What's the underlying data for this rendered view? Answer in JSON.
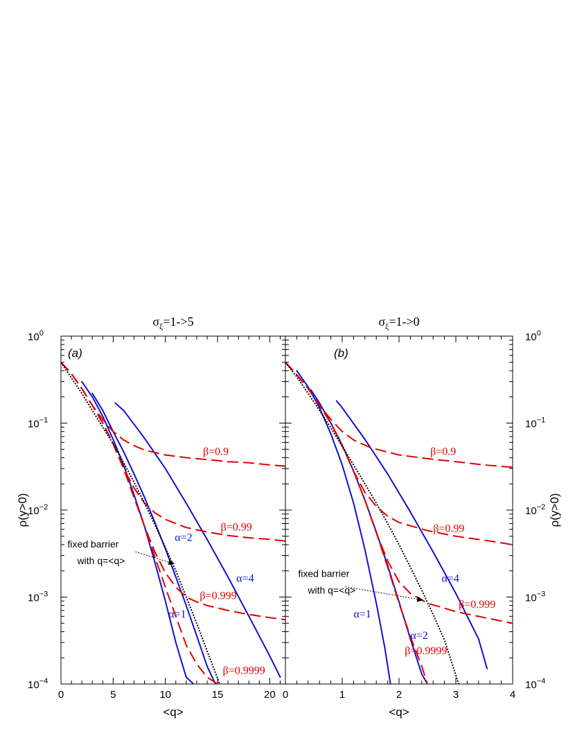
{
  "colors": {
    "alpha": "#1010cc",
    "beta": "#e00000",
    "fixed": "#000000"
  },
  "chart_data": [
    {
      "type": "line",
      "panel_label": "(a)",
      "title": "σξ=1->5",
      "title_main": "σ",
      "title_sub": "ξ",
      "title_rest": "=1->5",
      "xlabel": "<q>",
      "ylabel": "ρ(y>0)",
      "xlim": [
        0,
        21.5
      ],
      "ylim": [
        0.0001,
        1
      ],
      "yscale": "log",
      "xticks": [
        0,
        5,
        10,
        15,
        20
      ],
      "xtick_labels": [
        "0",
        "5",
        "10",
        "15",
        "20"
      ],
      "yticks": [
        1,
        0.1,
        0.01,
        0.001,
        0.0001
      ],
      "ytick_labels": [
        {
          "base": "10",
          "exp": "0"
        },
        {
          "base": "10",
          "exp": "−1"
        },
        {
          "base": "10",
          "exp": "−2"
        },
        {
          "base": "10",
          "exp": "−3"
        },
        {
          "base": "10",
          "exp": "−4"
        }
      ],
      "series": [
        {
          "name": "α=1",
          "kind": "alpha",
          "x": [
            2.0,
            3.0,
            4.0,
            5.0,
            6.0,
            7.0,
            8.0,
            9.0,
            10.0,
            11.0,
            12.0,
            12.7
          ],
          "y": [
            0.3,
            0.2,
            0.12,
            0.065,
            0.033,
            0.015,
            0.0065,
            0.0025,
            0.0009,
            0.0003,
            0.00012,
            0.0001
          ]
        },
        {
          "name": "α=2",
          "kind": "alpha",
          "x": [
            3.0,
            4.0,
            5.0,
            6.0,
            7.0,
            8.0,
            9.0,
            10.0,
            11.0,
            12.0,
            13.0,
            14.0,
            14.8
          ],
          "y": [
            0.22,
            0.14,
            0.08,
            0.047,
            0.026,
            0.014,
            0.0072,
            0.0036,
            0.0017,
            0.0008,
            0.00036,
            0.00016,
            0.0001
          ]
        },
        {
          "name": "α=4",
          "kind": "alpha",
          "x": [
            5.2,
            6.0,
            8.0,
            10.0,
            12.0,
            14.0,
            16.0,
            18.0,
            20.0,
            21.0
          ],
          "y": [
            0.17,
            0.14,
            0.067,
            0.03,
            0.012,
            0.0046,
            0.0017,
            0.0006,
            0.00021,
            0.00012
          ]
        },
        {
          "name": "β=0.9",
          "kind": "beta",
          "x": [
            0.0,
            1.0,
            2.0,
            3.0,
            4.0,
            5.0,
            6.0,
            7.0,
            8.0,
            10.0,
            12.0,
            14.0,
            16.0,
            18.0,
            20.0,
            21.5
          ],
          "y": [
            0.5,
            0.37,
            0.25,
            0.16,
            0.11,
            0.08,
            0.064,
            0.055,
            0.049,
            0.043,
            0.04,
            0.038,
            0.036,
            0.035,
            0.033,
            0.032
          ]
        },
        {
          "name": "β=0.99",
          "kind": "beta",
          "x": [
            0.0,
            1.0,
            2.0,
            3.0,
            4.0,
            5.0,
            6.0,
            7.0,
            8.0,
            9.0,
            10.0,
            12.0,
            14.0,
            16.0,
            18.0,
            20.0,
            21.5
          ],
          "y": [
            0.5,
            0.37,
            0.25,
            0.16,
            0.1,
            0.058,
            0.03,
            0.018,
            0.012,
            0.0093,
            0.0078,
            0.0063,
            0.0056,
            0.0051,
            0.0048,
            0.0046,
            0.0044
          ]
        },
        {
          "name": "β=0.999",
          "kind": "beta",
          "x": [
            0.0,
            1.0,
            2.0,
            3.0,
            4.0,
            5.0,
            6.0,
            7.0,
            8.0,
            9.0,
            10.0,
            11.0,
            12.0,
            13.0,
            14.0,
            16.0,
            18.0,
            20.0,
            21.5
          ],
          "y": [
            0.5,
            0.37,
            0.25,
            0.16,
            0.1,
            0.058,
            0.03,
            0.014,
            0.0065,
            0.0033,
            0.0019,
            0.0013,
            0.001,
            0.00088,
            0.0008,
            0.0007,
            0.00063,
            0.00058,
            0.00055
          ]
        },
        {
          "name": "β=0.9999",
          "kind": "beta",
          "x": [
            0.0,
            1.0,
            2.0,
            3.0,
            4.0,
            5.0,
            6.0,
            7.0,
            8.0,
            9.0,
            10.0,
            11.0,
            12.0,
            13.0,
            14.0,
            15.0
          ],
          "y": [
            0.5,
            0.37,
            0.25,
            0.16,
            0.1,
            0.058,
            0.03,
            0.014,
            0.0065,
            0.0029,
            0.0013,
            0.0006,
            0.00028,
            0.00017,
            0.00012,
            0.0001
          ]
        },
        {
          "name": "fixed barrier with q=<q>",
          "kind": "fixed",
          "x": [
            0.0,
            1.0,
            2.0,
            3.0,
            4.0,
            5.0,
            6.0,
            7.0,
            8.0,
            9.0,
            10.0,
            11.0,
            12.0,
            13.0,
            14.0,
            15.2
          ],
          "y": [
            0.5,
            0.33,
            0.22,
            0.14,
            0.09,
            0.058,
            0.035,
            0.021,
            0.012,
            0.0068,
            0.0037,
            0.002,
            0.001,
            0.0005,
            0.00024,
            0.0001
          ]
        }
      ],
      "annotations": [
        {
          "text": "β=0.9",
          "kind": "beta",
          "x": 13.6,
          "y": 0.043
        },
        {
          "text": "β=0.99",
          "kind": "beta",
          "x": 15.3,
          "y": 0.0058
        },
        {
          "text": "β=0.999",
          "kind": "beta",
          "x": 13.3,
          "y": 0.00095
        },
        {
          "text": "β=0.9999",
          "kind": "beta",
          "x": 15.5,
          "y": 0.00013
        },
        {
          "text": "α=2",
          "kind": "alpha",
          "x": 10.9,
          "y": 0.0044
        },
        {
          "text": "α=4",
          "kind": "alpha",
          "x": 16.8,
          "y": 0.0015
        },
        {
          "text": "α=1",
          "kind": "alpha",
          "x": 10.3,
          "y": 0.00058
        }
      ],
      "fixed_label": {
        "line1": "fixed barrier",
        "line2": "with q=<q>",
        "x": 0.5,
        "y": 0.0037,
        "arrow_to_x": 10.9,
        "arrow_to_y": 0.0024
      }
    },
    {
      "type": "line",
      "panel_label": "(b)",
      "title": "σξ=1->0",
      "title_main": "σ",
      "title_sub": "ξ",
      "title_rest": "=1->0",
      "xlabel": "<q>",
      "ylabel": "ρ(y>0)",
      "xlim": [
        0,
        4
      ],
      "ylim": [
        0.0001,
        1
      ],
      "yscale": "log",
      "xticks": [
        0,
        1,
        2,
        3,
        4
      ],
      "xtick_labels": [
        "0",
        "1",
        "2",
        "3",
        "4"
      ],
      "yticks": [
        1,
        0.1,
        0.01,
        0.001,
        0.0001
      ],
      "ytick_labels": [
        {
          "base": "10",
          "exp": "0"
        },
        {
          "base": "10",
          "exp": "−1"
        },
        {
          "base": "10",
          "exp": "−2"
        },
        {
          "base": "10",
          "exp": "−3"
        },
        {
          "base": "10",
          "exp": "−4"
        }
      ],
      "series": [
        {
          "name": "α=1",
          "kind": "alpha",
          "x": [
            0.2,
            0.4,
            0.6,
            0.8,
            1.0,
            1.2,
            1.4,
            1.6,
            1.75,
            1.85
          ],
          "y": [
            0.4,
            0.26,
            0.15,
            0.075,
            0.033,
            0.012,
            0.0035,
            0.00085,
            0.00026,
            0.0001
          ]
        },
        {
          "name": "α=2",
          "kind": "alpha",
          "x": [
            0.45,
            0.6,
            0.8,
            1.0,
            1.2,
            1.4,
            1.6,
            1.8,
            2.0,
            2.2,
            2.4,
            2.5
          ],
          "y": [
            0.24,
            0.17,
            0.1,
            0.056,
            0.028,
            0.013,
            0.0056,
            0.0023,
            0.00088,
            0.00033,
            0.00013,
            0.0001
          ]
        },
        {
          "name": "α=4",
          "kind": "alpha",
          "x": [
            0.9,
            1.0,
            1.4,
            1.8,
            2.2,
            2.6,
            3.0,
            3.4,
            3.55
          ],
          "y": [
            0.18,
            0.15,
            0.065,
            0.026,
            0.0095,
            0.0033,
            0.0011,
            0.00033,
            0.00015
          ]
        },
        {
          "name": "β=0.9",
          "kind": "beta",
          "x": [
            0.0,
            0.2,
            0.4,
            0.6,
            0.8,
            1.0,
            1.2,
            1.5,
            2.0,
            2.5,
            3.0,
            3.5,
            4.0
          ],
          "y": [
            0.5,
            0.36,
            0.25,
            0.16,
            0.11,
            0.08,
            0.064,
            0.052,
            0.043,
            0.039,
            0.036,
            0.033,
            0.031
          ]
        },
        {
          "name": "β=0.99",
          "kind": "beta",
          "x": [
            0.0,
            0.2,
            0.4,
            0.6,
            0.8,
            1.0,
            1.2,
            1.4,
            1.6,
            1.8,
            2.0,
            2.5,
            3.0,
            3.5,
            4.0
          ],
          "y": [
            0.5,
            0.36,
            0.25,
            0.16,
            0.1,
            0.055,
            0.028,
            0.016,
            0.011,
            0.0085,
            0.0072,
            0.0058,
            0.005,
            0.0045,
            0.004
          ]
        },
        {
          "name": "β=0.999",
          "kind": "beta",
          "x": [
            0.0,
            0.2,
            0.4,
            0.6,
            0.8,
            1.0,
            1.2,
            1.4,
            1.6,
            1.8,
            2.0,
            2.2,
            2.5,
            3.0,
            3.5,
            4.0
          ],
          "y": [
            0.5,
            0.36,
            0.25,
            0.16,
            0.1,
            0.055,
            0.028,
            0.013,
            0.0055,
            0.0026,
            0.0015,
            0.0011,
            0.00085,
            0.00068,
            0.00058,
            0.0005
          ]
        },
        {
          "name": "β=0.9999",
          "kind": "beta",
          "x": [
            0.0,
            0.2,
            0.4,
            0.6,
            0.8,
            1.0,
            1.2,
            1.4,
            1.6,
            1.8,
            2.0,
            2.2,
            2.4,
            2.5
          ],
          "y": [
            0.5,
            0.36,
            0.25,
            0.16,
            0.1,
            0.055,
            0.028,
            0.013,
            0.0055,
            0.0022,
            0.00085,
            0.00035,
            0.00016,
            0.0001
          ]
        },
        {
          "name": "fixed barrier with q=<q>",
          "kind": "fixed",
          "x": [
            0.0,
            0.2,
            0.4,
            0.6,
            0.8,
            1.0,
            1.2,
            1.4,
            1.6,
            1.8,
            2.0,
            2.2,
            2.4,
            2.6,
            2.8,
            3.05
          ],
          "y": [
            0.5,
            0.34,
            0.22,
            0.14,
            0.088,
            0.054,
            0.033,
            0.02,
            0.012,
            0.007,
            0.004,
            0.0022,
            0.0012,
            0.00063,
            0.00032,
            0.0001
          ]
        }
      ],
      "annotations": [
        {
          "text": "β=0.9",
          "kind": "beta",
          "x": 2.55,
          "y": 0.043
        },
        {
          "text": "β=0.99",
          "kind": "beta",
          "x": 2.6,
          "y": 0.0056
        },
        {
          "text": "β=0.999",
          "kind": "beta",
          "x": 3.05,
          "y": 0.00075
        },
        {
          "text": "β=0.9999",
          "kind": "beta",
          "x": 2.1,
          "y": 0.00022
        },
        {
          "text": "α=4",
          "kind": "alpha",
          "x": 2.75,
          "y": 0.0015
        },
        {
          "text": "α=2",
          "kind": "alpha",
          "x": 2.2,
          "y": 0.00033
        },
        {
          "text": "α=1",
          "kind": "alpha",
          "x": 1.2,
          "y": 0.00058
        }
      ],
      "fixed_label": {
        "line1": "fixed barrier",
        "line2": "with q=<q>",
        "x": 0.2,
        "y": 0.0017,
        "arrow_to_x": 2.43,
        "arrow_to_y": 0.00092
      }
    }
  ]
}
